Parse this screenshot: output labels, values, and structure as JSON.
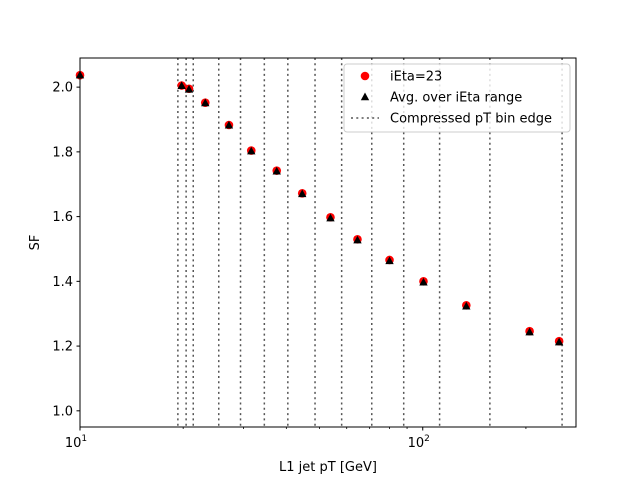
{
  "chart_data": {
    "type": "scatter",
    "xscale": "log",
    "xlim": [
      10,
      280
    ],
    "ylim": [
      0.95,
      2.09
    ],
    "xlabel": "L1 jet pT [GeV]",
    "ylabel": "SF",
    "yticks": [
      1.0,
      1.2,
      1.4,
      1.6,
      1.8,
      2.0
    ],
    "ytick_labels": [
      "1.0",
      "1.2",
      "1.4",
      "1.6",
      "1.8",
      "2.0"
    ],
    "xticks": [
      10,
      100
    ],
    "xtick_bases": [
      "10",
      "10"
    ],
    "xtick_exps": [
      "1",
      "2"
    ],
    "grid": false,
    "legend_position": "upper right",
    "series": [
      {
        "name": "iEta=23",
        "marker": "circle",
        "color": "#ff0000",
        "x": [
          10.0,
          19.8,
          20.8,
          23.2,
          27.2,
          31.6,
          37.5,
          44.5,
          53.8,
          64.5,
          80.0,
          100.5,
          134.0,
          205.0,
          250.0
        ],
        "y": [
          2.037,
          2.005,
          1.995,
          1.952,
          1.883,
          1.804,
          1.742,
          1.672,
          1.598,
          1.53,
          1.466,
          1.4,
          1.326,
          1.246,
          1.215
        ]
      },
      {
        "name": "Avg. over iEta range",
        "marker": "triangle",
        "color": "#000000",
        "x": [
          10.0,
          19.8,
          20.8,
          23.2,
          27.2,
          31.6,
          37.5,
          44.5,
          53.8,
          64.5,
          80.0,
          100.5,
          134.0,
          205.0,
          250.0
        ],
        "y": [
          2.037,
          2.004,
          1.993,
          1.951,
          1.882,
          1.802,
          1.74,
          1.67,
          1.595,
          1.527,
          1.463,
          1.397,
          1.323,
          1.243,
          1.212
        ]
      }
    ],
    "bin_edges": {
      "name": "Compressed pT bin edge",
      "style": "dotted",
      "color": "#555555",
      "x": [
        19.3,
        20.4,
        21.4,
        25.4,
        29.4,
        34.5,
        40.4,
        48.5,
        58.0,
        71.0,
        88.0,
        112.0,
        157.0,
        255.0
      ]
    }
  }
}
